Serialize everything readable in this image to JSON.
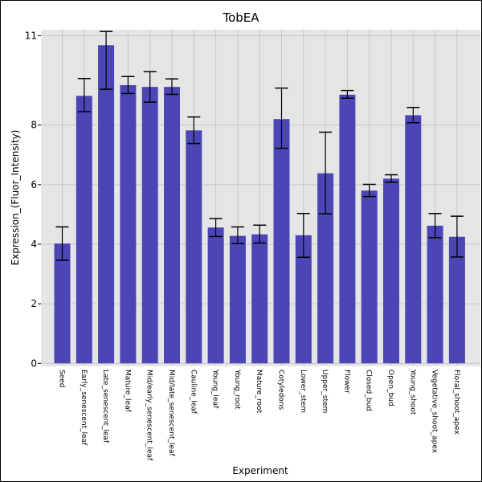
{
  "chart_data": {
    "type": "bar",
    "title": "TobEA",
    "xlabel": "Experiment",
    "ylabel": "Expression_(Fluor_Intensity)",
    "ylim": [
      -0.1,
      11.2
    ],
    "yticks": [
      0,
      2,
      4,
      6,
      8,
      11
    ],
    "grid": true,
    "bar_color": "#4b45b5",
    "plot_bg": "#e5e5e5",
    "grid_color": "#c8c8c8",
    "categories": [
      "Seed",
      "Early_senescent_leaf",
      "Late_senescent_leaf",
      "Mature_leaf",
      "Mid/early_senescent_leaf",
      "Mid/late_senescent_leaf",
      "Cauline_leaf",
      "Young_leaf",
      "Young_root",
      "Mature_root",
      "Cotyledons",
      "Lower_stem",
      "Upper_stem",
      "Flower",
      "Closed_bud",
      "Open_bud",
      "Young_shoot",
      "Vegetative_shoot_apex",
      "Floral_shoot_apex"
    ],
    "values": [
      4.02,
      8.98,
      10.68,
      9.34,
      9.28,
      9.28,
      7.82,
      4.56,
      4.28,
      4.33,
      8.2,
      4.3,
      6.38,
      9.02,
      5.8,
      6.2,
      8.33,
      4.62,
      4.25
    ],
    "error_low": [
      3.46,
      8.45,
      9.2,
      9.06,
      8.77,
      9.03,
      7.38,
      4.26,
      4.02,
      4.04,
      7.22,
      3.56,
      5.02,
      8.9,
      5.6,
      6.08,
      8.08,
      4.22,
      3.57
    ],
    "error_high": [
      4.58,
      9.56,
      11.14,
      9.63,
      9.79,
      9.55,
      8.27,
      4.86,
      4.58,
      4.64,
      9.24,
      5.03,
      7.76,
      9.16,
      6.01,
      6.33,
      8.59,
      5.03,
      4.94
    ]
  }
}
